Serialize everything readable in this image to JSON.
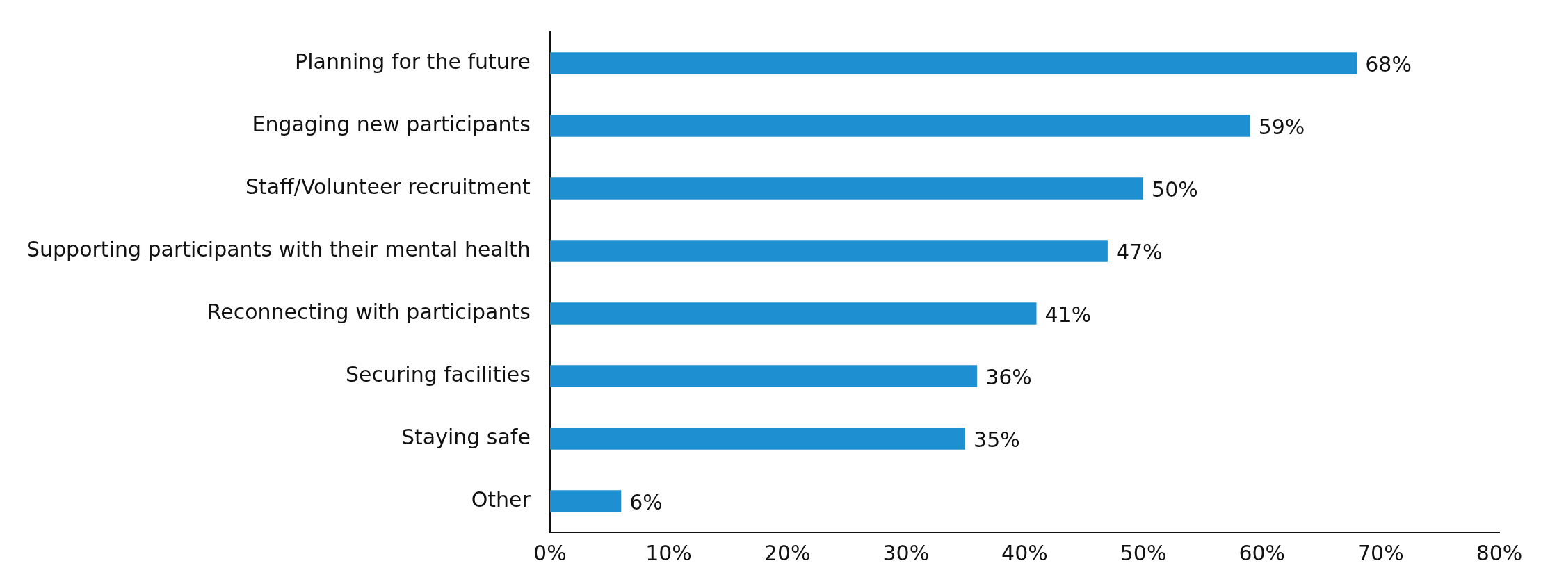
{
  "chart_data": {
    "type": "bar",
    "orientation": "horizontal",
    "categories": [
      "Planning for the future",
      "Engaging new participants",
      "Staff/Volunteer recruitment",
      "Supporting participants with their mental health",
      "Reconnecting with participants",
      "Securing facilities",
      "Staying safe",
      "Other"
    ],
    "values": [
      68,
      59,
      50,
      47,
      41,
      36,
      35,
      6
    ],
    "value_labels": [
      "68%",
      "59%",
      "50%",
      "47%",
      "41%",
      "36%",
      "35%",
      "6%"
    ],
    "color": "#1e90d2",
    "xlim": [
      0,
      80
    ],
    "xticks": [
      {
        "value": 0,
        "label": "0%"
      },
      {
        "value": 10,
        "label": "10%"
      },
      {
        "value": 20,
        "label": "20%"
      },
      {
        "value": 30,
        "label": "30%"
      },
      {
        "value": 40,
        "label": "40%"
      },
      {
        "value": 50,
        "label": "50%"
      },
      {
        "value": 60,
        "label": "60%"
      },
      {
        "value": 70,
        "label": "70%"
      },
      {
        "value": 80,
        "label": "80%"
      }
    ],
    "grid": false,
    "legend": false
  }
}
